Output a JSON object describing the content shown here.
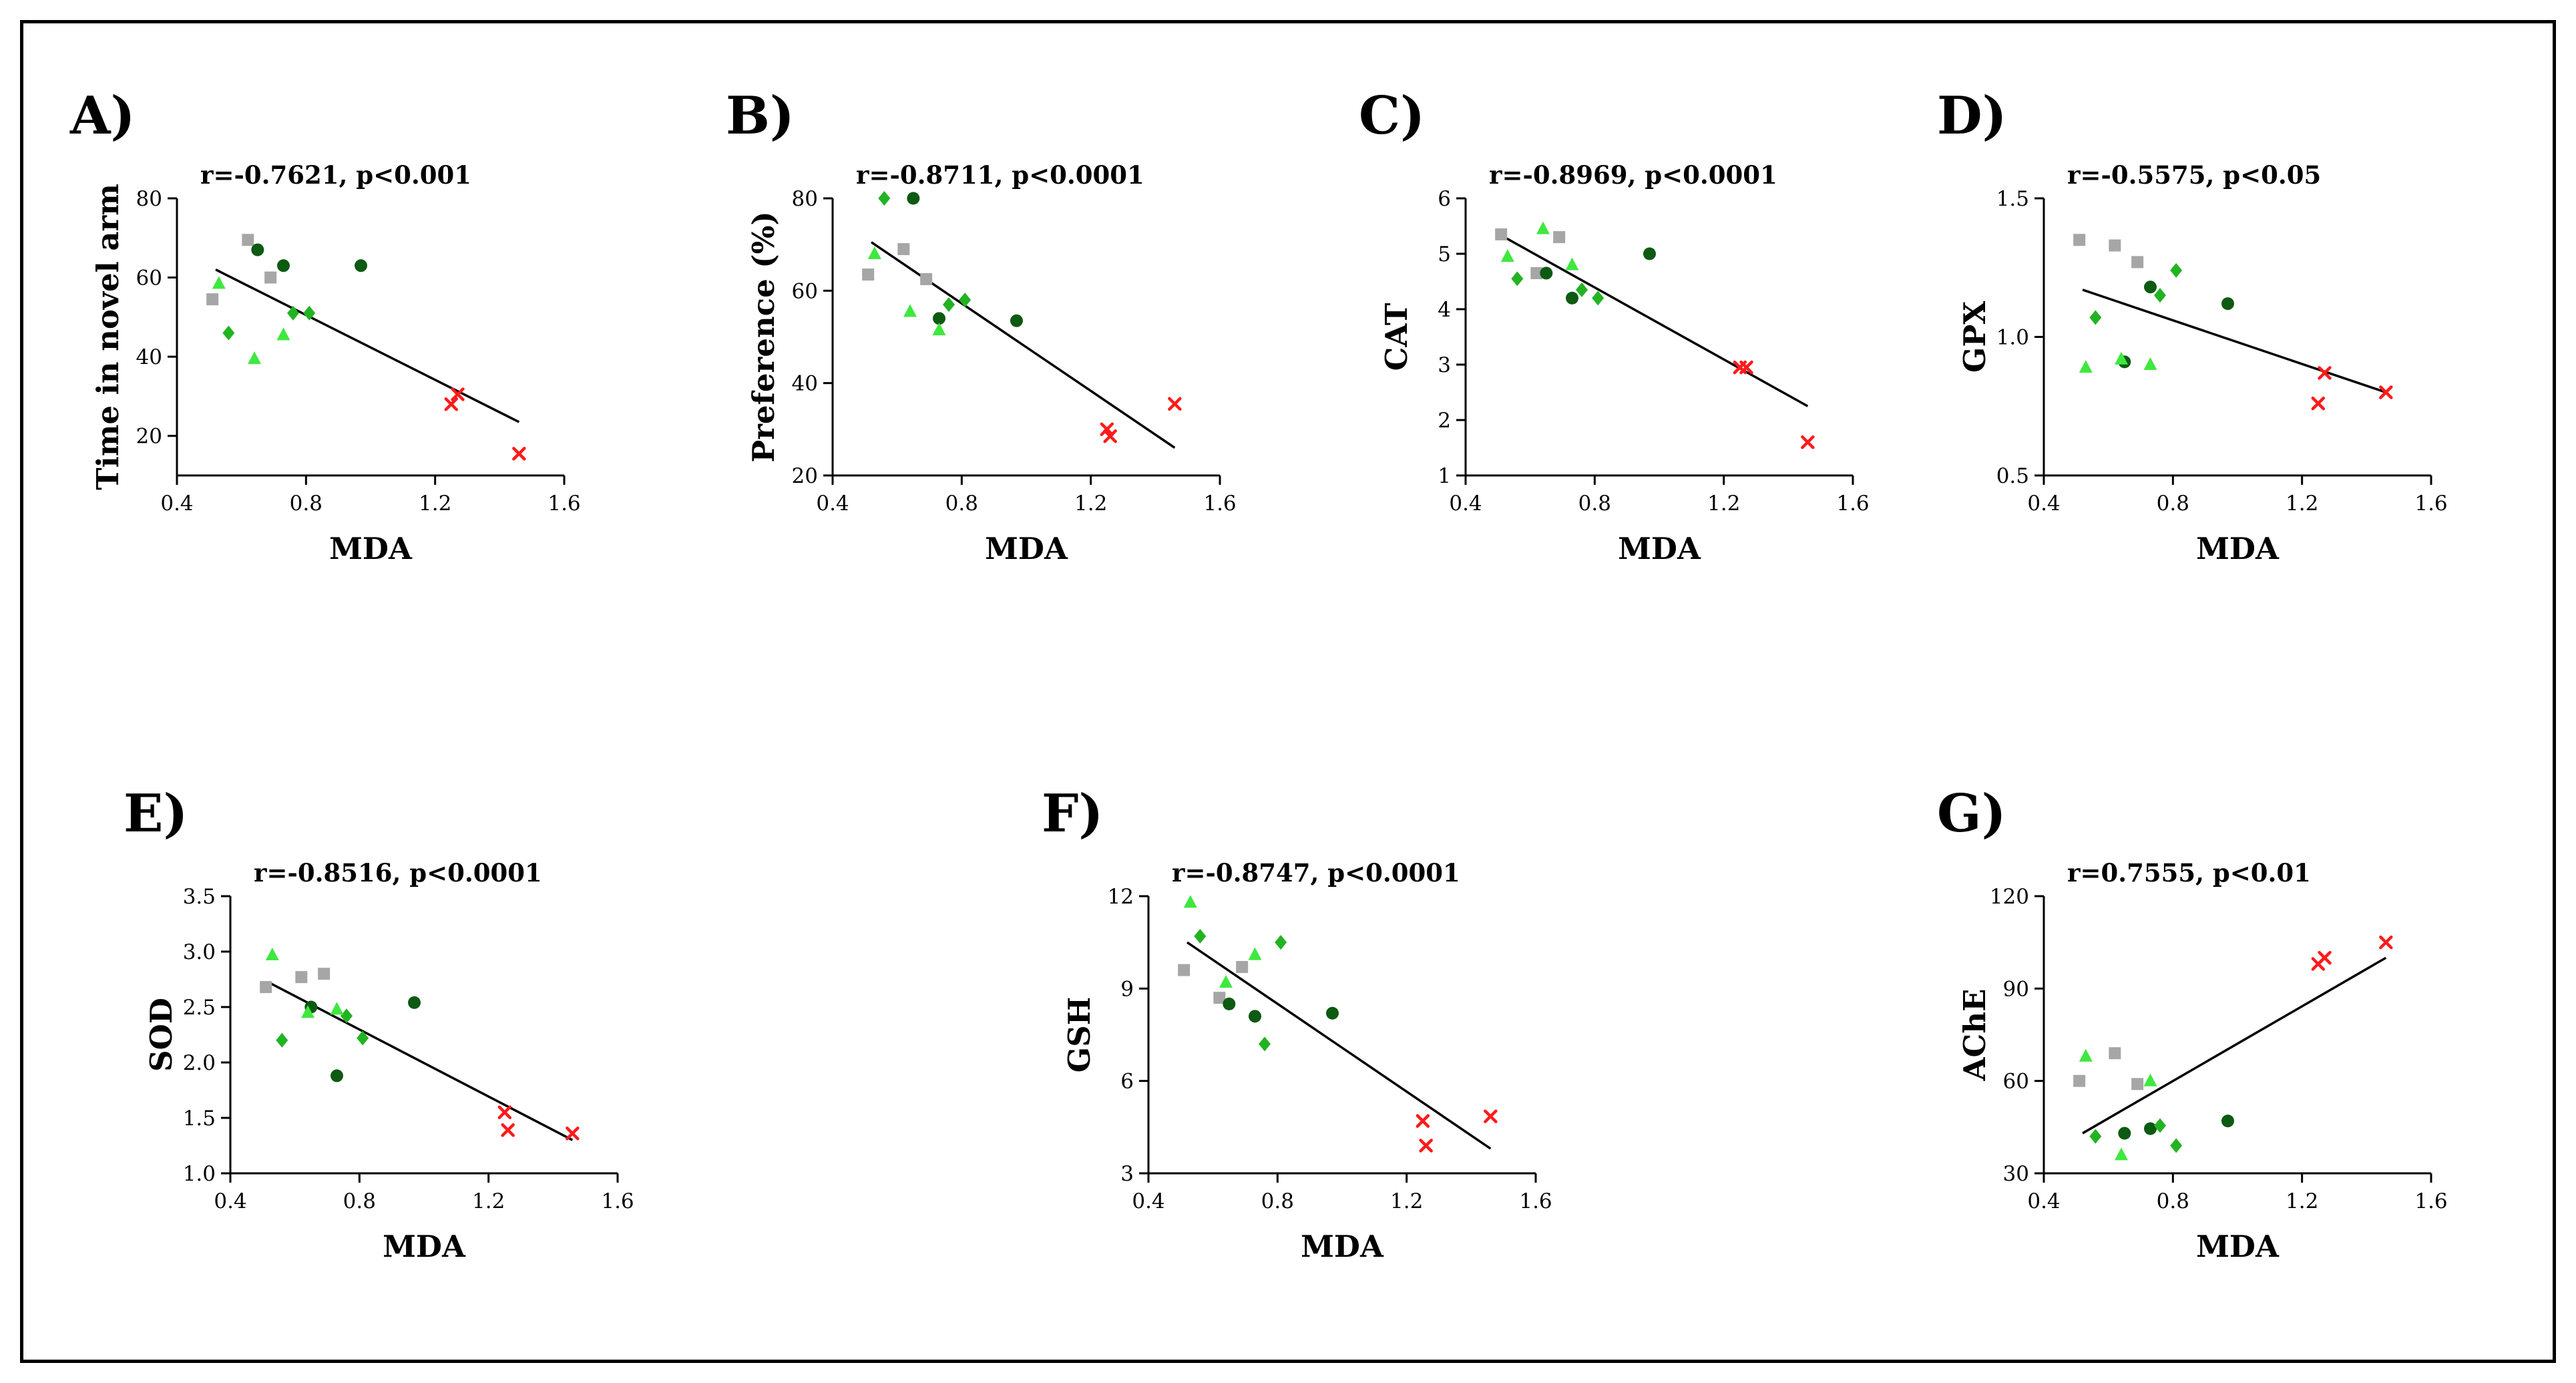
{
  "colors": {
    "gray_square": "#a6a6a6",
    "dark_green_circle": "#0d5a12",
    "green_diamond": "#22b322",
    "light_green_triangle": "#3fe83f",
    "red_cross": "#ff1a1a"
  },
  "chart_data": [
    {
      "type": "scatter",
      "label": "A)",
      "stat": "r=-0.7621, p<0.001",
      "xlabel": "MDA",
      "ylabel": "Time in novel arm",
      "xlim": [
        0.4,
        1.6
      ],
      "ylim": [
        10,
        80
      ],
      "xticks": [
        0.4,
        0.8,
        1.2,
        1.6
      ],
      "yticks": [
        20,
        40,
        60,
        80
      ],
      "xtick_labels": [
        "0.4",
        "0.8",
        "1.2",
        "1.6"
      ],
      "ytick_labels": [
        "20",
        "40",
        "60",
        "80"
      ],
      "fit": [
        [
          0.52,
          62
        ],
        [
          1.46,
          23.5
        ]
      ],
      "series": [
        {
          "marker": "square",
          "color": "#a6a6a6",
          "points": [
            [
              0.51,
              54.5
            ],
            [
              0.62,
              69.5
            ],
            [
              0.69,
              60
            ]
          ]
        },
        {
          "marker": "circle",
          "color": "#0d5a12",
          "points": [
            [
              0.65,
              67
            ],
            [
              0.73,
              63
            ],
            [
              0.97,
              63
            ]
          ]
        },
        {
          "marker": "diamond",
          "color": "#22b322",
          "points": [
            [
              0.56,
              46
            ],
            [
              0.76,
              51
            ],
            [
              0.81,
              51
            ]
          ]
        },
        {
          "marker": "triangle",
          "color": "#3fe83f",
          "points": [
            [
              0.53,
              58.5
            ],
            [
              0.64,
              39.5
            ],
            [
              0.73,
              45.5
            ]
          ]
        },
        {
          "marker": "cross",
          "color": "#ff1a1a",
          "points": [
            [
              1.25,
              28
            ],
            [
              1.27,
              30.5
            ],
            [
              1.46,
              15.5
            ]
          ]
        }
      ]
    },
    {
      "type": "scatter",
      "label": "B)",
      "stat": "r=-0.8711, p<0.0001",
      "xlabel": "MDA",
      "ylabel": "Preference (%)",
      "xlim": [
        0.4,
        1.6
      ],
      "ylim": [
        20,
        80
      ],
      "xticks": [
        0.4,
        0.8,
        1.2,
        1.6
      ],
      "yticks": [
        20,
        40,
        60,
        80
      ],
      "xtick_labels": [
        "0.4",
        "0.8",
        "1.2",
        "1.6"
      ],
      "ytick_labels": [
        "20",
        "40",
        "60",
        "80"
      ],
      "fit": [
        [
          0.52,
          70.5
        ],
        [
          1.46,
          26
        ]
      ],
      "series": [
        {
          "marker": "square",
          "color": "#a6a6a6",
          "points": [
            [
              0.51,
              63.5
            ],
            [
              0.62,
              69
            ],
            [
              0.69,
              62.5
            ]
          ]
        },
        {
          "marker": "circle",
          "color": "#0d5a12",
          "points": [
            [
              0.65,
              80
            ],
            [
              0.73,
              54
            ],
            [
              0.97,
              53.5
            ]
          ]
        },
        {
          "marker": "diamond",
          "color": "#22b322",
          "points": [
            [
              0.56,
              80
            ],
            [
              0.76,
              57
            ],
            [
              0.81,
              58
            ]
          ]
        },
        {
          "marker": "triangle",
          "color": "#3fe83f",
          "points": [
            [
              0.53,
              68
            ],
            [
              0.64,
              55.5
            ],
            [
              0.73,
              51.5
            ]
          ]
        },
        {
          "marker": "cross",
          "color": "#ff1a1a",
          "points": [
            [
              1.25,
              30
            ],
            [
              1.26,
              28.5
            ],
            [
              1.46,
              35.5
            ]
          ]
        }
      ]
    },
    {
      "type": "scatter",
      "label": "C)",
      "stat": "r=-0.8969, p<0.0001",
      "xlabel": "MDA",
      "ylabel": "CAT",
      "xlim": [
        0.4,
        1.6
      ],
      "ylim": [
        1,
        6
      ],
      "xticks": [
        0.4,
        0.8,
        1.2,
        1.6
      ],
      "yticks": [
        1,
        2,
        3,
        4,
        5,
        6
      ],
      "xtick_labels": [
        "0.4",
        "0.8",
        "1.2",
        "1.6"
      ],
      "ytick_labels": [
        "1",
        "2",
        "3",
        "4",
        "5",
        "6"
      ],
      "fit": [
        [
          0.52,
          5.3
        ],
        [
          1.46,
          2.25
        ]
      ],
      "series": [
        {
          "marker": "square",
          "color": "#a6a6a6",
          "points": [
            [
              0.51,
              5.35
            ],
            [
              0.62,
              4.65
            ],
            [
              0.69,
              5.3
            ]
          ]
        },
        {
          "marker": "circle",
          "color": "#0d5a12",
          "points": [
            [
              0.65,
              4.65
            ],
            [
              0.73,
              4.2
            ],
            [
              0.97,
              5.0
            ]
          ]
        },
        {
          "marker": "diamond",
          "color": "#22b322",
          "points": [
            [
              0.56,
              4.55
            ],
            [
              0.76,
              4.35
            ],
            [
              0.81,
              4.2
            ]
          ]
        },
        {
          "marker": "triangle",
          "color": "#3fe83f",
          "points": [
            [
              0.53,
              4.95
            ],
            [
              0.64,
              5.45
            ],
            [
              0.73,
              4.8
            ]
          ]
        },
        {
          "marker": "cross",
          "color": "#ff1a1a",
          "points": [
            [
              1.25,
              2.95
            ],
            [
              1.27,
              2.95
            ],
            [
              1.46,
              1.6
            ]
          ]
        }
      ]
    },
    {
      "type": "scatter",
      "label": "D)",
      "stat": "r=-0.5575, p<0.05",
      "xlabel": "MDA",
      "ylabel": "GPX",
      "xlim": [
        0.4,
        1.6
      ],
      "ylim": [
        0.5,
        1.5
      ],
      "xticks": [
        0.4,
        0.8,
        1.2,
        1.6
      ],
      "yticks": [
        0.5,
        1.0,
        1.5
      ],
      "xtick_labels": [
        "0.4",
        "0.8",
        "1.2",
        "1.6"
      ],
      "ytick_labels": [
        "0.5",
        "1.0",
        "1.5"
      ],
      "fit": [
        [
          0.52,
          1.17
        ],
        [
          1.46,
          0.8
        ]
      ],
      "series": [
        {
          "marker": "square",
          "color": "#a6a6a6",
          "points": [
            [
              0.51,
              1.35
            ],
            [
              0.62,
              1.33
            ],
            [
              0.69,
              1.27
            ]
          ]
        },
        {
          "marker": "circle",
          "color": "#0d5a12",
          "points": [
            [
              0.65,
              0.91
            ],
            [
              0.73,
              1.18
            ],
            [
              0.97,
              1.12
            ]
          ]
        },
        {
          "marker": "diamond",
          "color": "#22b322",
          "points": [
            [
              0.56,
              1.07
            ],
            [
              0.76,
              1.15
            ],
            [
              0.81,
              1.24
            ]
          ]
        },
        {
          "marker": "triangle",
          "color": "#3fe83f",
          "points": [
            [
              0.53,
              0.89
            ],
            [
              0.64,
              0.92
            ],
            [
              0.73,
              0.9
            ]
          ]
        },
        {
          "marker": "cross",
          "color": "#ff1a1a",
          "points": [
            [
              1.25,
              0.76
            ],
            [
              1.27,
              0.87
            ],
            [
              1.46,
              0.8
            ]
          ]
        }
      ]
    },
    {
      "type": "scatter",
      "label": "E)",
      "stat": "r=-0.8516, p<0.0001",
      "xlabel": "MDA",
      "ylabel": "SOD",
      "xlim": [
        0.4,
        1.6
      ],
      "ylim": [
        1.0,
        3.5
      ],
      "xticks": [
        0.4,
        0.8,
        1.2,
        1.6
      ],
      "yticks": [
        1.0,
        1.5,
        2.0,
        2.5,
        3.0,
        3.5
      ],
      "xtick_labels": [
        "0.4",
        "0.8",
        "1.2",
        "1.6"
      ],
      "ytick_labels": [
        "1.0",
        "1.5",
        "2.0",
        "2.5",
        "3.0",
        "3.5"
      ],
      "fit": [
        [
          0.52,
          2.72
        ],
        [
          1.46,
          1.3
        ]
      ],
      "series": [
        {
          "marker": "square",
          "color": "#a6a6a6",
          "points": [
            [
              0.51,
              2.68
            ],
            [
              0.62,
              2.77
            ],
            [
              0.69,
              2.8
            ]
          ]
        },
        {
          "marker": "circle",
          "color": "#0d5a12",
          "points": [
            [
              0.65,
              2.5
            ],
            [
              0.73,
              1.88
            ],
            [
              0.97,
              2.54
            ]
          ]
        },
        {
          "marker": "diamond",
          "color": "#22b322",
          "points": [
            [
              0.56,
              2.2
            ],
            [
              0.76,
              2.42
            ],
            [
              0.81,
              2.22
            ]
          ]
        },
        {
          "marker": "triangle",
          "color": "#3fe83f",
          "points": [
            [
              0.53,
              2.97
            ],
            [
              0.64,
              2.45
            ],
            [
              0.73,
              2.48
            ]
          ]
        },
        {
          "marker": "cross",
          "color": "#ff1a1a",
          "points": [
            [
              1.25,
              1.55
            ],
            [
              1.26,
              1.39
            ],
            [
              1.46,
              1.36
            ]
          ]
        }
      ]
    },
    {
      "type": "scatter",
      "label": "F)",
      "stat": "r=-0.8747, p<0.0001",
      "xlabel": "MDA",
      "ylabel": "GSH",
      "xlim": [
        0.4,
        1.6
      ],
      "ylim": [
        3,
        12
      ],
      "xticks": [
        0.4,
        0.8,
        1.2,
        1.6
      ],
      "yticks": [
        3,
        6,
        9,
        12
      ],
      "xtick_labels": [
        "0.4",
        "0.8",
        "1.2",
        "1.6"
      ],
      "ytick_labels": [
        "3",
        "6",
        "9",
        "12"
      ],
      "fit": [
        [
          0.52,
          10.5
        ],
        [
          1.46,
          3.8
        ]
      ],
      "series": [
        {
          "marker": "square",
          "color": "#a6a6a6",
          "points": [
            [
              0.51,
              9.6
            ],
            [
              0.62,
              8.7
            ],
            [
              0.69,
              9.7
            ]
          ]
        },
        {
          "marker": "circle",
          "color": "#0d5a12",
          "points": [
            [
              0.65,
              8.5
            ],
            [
              0.73,
              8.1
            ],
            [
              0.97,
              8.2
            ]
          ]
        },
        {
          "marker": "diamond",
          "color": "#22b322",
          "points": [
            [
              0.56,
              10.7
            ],
            [
              0.76,
              7.2
            ],
            [
              0.81,
              10.5
            ]
          ]
        },
        {
          "marker": "triangle",
          "color": "#3fe83f",
          "points": [
            [
              0.53,
              11.8
            ],
            [
              0.64,
              9.2
            ],
            [
              0.73,
              10.1
            ]
          ]
        },
        {
          "marker": "cross",
          "color": "#ff1a1a",
          "points": [
            [
              1.25,
              4.7
            ],
            [
              1.26,
              3.9
            ],
            [
              1.46,
              4.85
            ]
          ]
        }
      ]
    },
    {
      "type": "scatter",
      "label": "G)",
      "stat": "r=0.7555, p<0.01",
      "xlabel": "MDA",
      "ylabel": "AChE",
      "xlim": [
        0.4,
        1.6
      ],
      "ylim": [
        30,
        120
      ],
      "xticks": [
        0.4,
        0.8,
        1.2,
        1.6
      ],
      "yticks": [
        30,
        60,
        90,
        120
      ],
      "xtick_labels": [
        "0.4",
        "0.8",
        "1.2",
        "1.6"
      ],
      "ytick_labels": [
        "30",
        "60",
        "90",
        "120"
      ],
      "fit": [
        [
          0.52,
          43
        ],
        [
          1.46,
          100
        ]
      ],
      "series": [
        {
          "marker": "square",
          "color": "#a6a6a6",
          "points": [
            [
              0.51,
              60
            ],
            [
              0.62,
              69
            ],
            [
              0.69,
              59
            ]
          ]
        },
        {
          "marker": "circle",
          "color": "#0d5a12",
          "points": [
            [
              0.65,
              43
            ],
            [
              0.73,
              44.5
            ],
            [
              0.97,
              47
            ]
          ]
        },
        {
          "marker": "diamond",
          "color": "#22b322",
          "points": [
            [
              0.56,
              42
            ],
            [
              0.76,
              45.5
            ],
            [
              0.81,
              39
            ]
          ]
        },
        {
          "marker": "triangle",
          "color": "#3fe83f",
          "points": [
            [
              0.53,
              68
            ],
            [
              0.64,
              36
            ],
            [
              0.73,
              60
            ]
          ]
        },
        {
          "marker": "cross",
          "color": "#ff1a1a",
          "points": [
            [
              1.25,
              98
            ],
            [
              1.27,
              100
            ],
            [
              1.46,
              105
            ]
          ]
        }
      ]
    }
  ]
}
